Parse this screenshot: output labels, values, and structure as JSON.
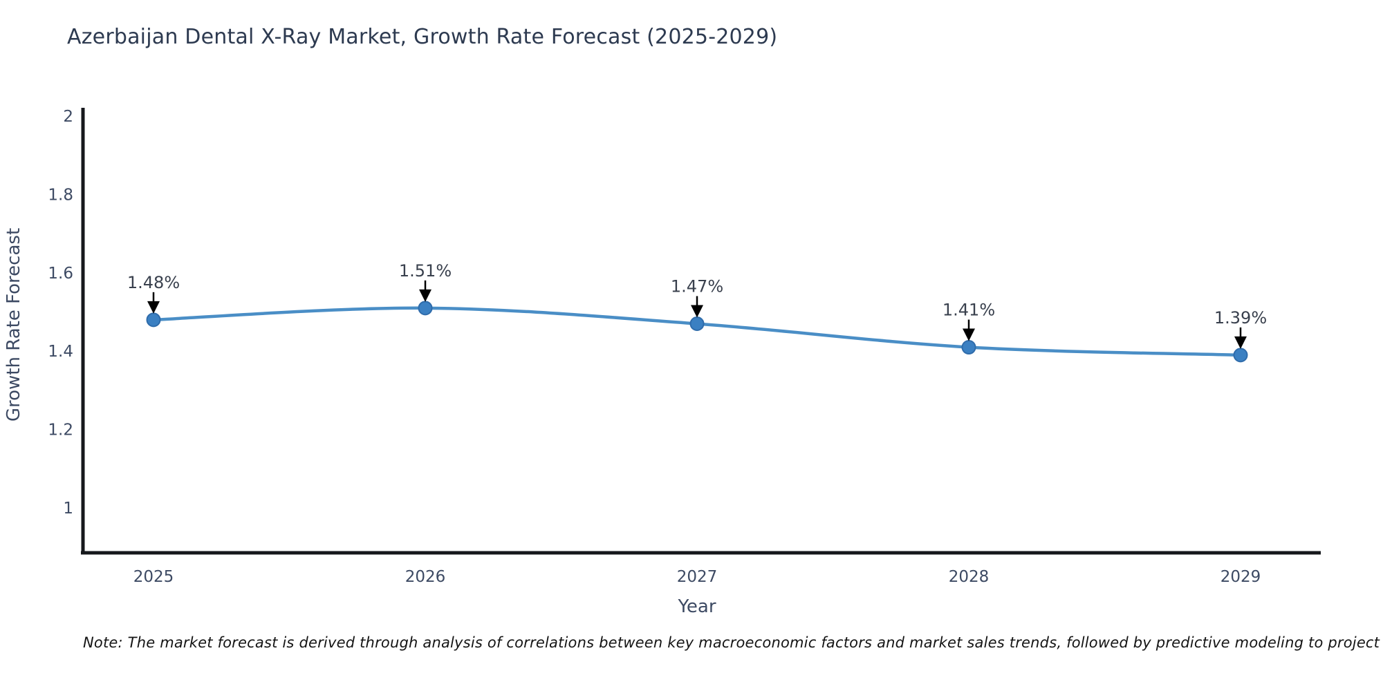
{
  "page": {
    "note": "Note: The market forecast is derived through analysis of correlations between key macroeconomic factors and market sales trends, followed by predictive modeling to project future sales"
  },
  "chart_data": {
    "type": "line",
    "title": "Azerbaijan Dental X-Ray Market, Growth Rate Forecast (2025-2029)",
    "xlabel": "Year",
    "ylabel": "Growth Rate Forecast",
    "x": [
      2025,
      2026,
      2027,
      2028,
      2029
    ],
    "series": [
      {
        "name": "Growth Rate Forecast",
        "values": [
          1.48,
          1.51,
          1.47,
          1.41,
          1.39
        ],
        "point_labels": [
          "1.48%",
          "1.51%",
          "1.47%",
          "1.41%",
          "1.39%"
        ]
      }
    ],
    "x_tick_labels": [
      "2025",
      "2026",
      "2027",
      "2028",
      "2029"
    ],
    "y_ticks": [
      2,
      1.8,
      1.6,
      1.4,
      1.2,
      1
    ],
    "y_tick_labels": [
      "2",
      "1.8",
      "1.6",
      "1.4",
      "1.2",
      "1"
    ],
    "ylim": [
      0.885,
      2.02
    ],
    "grid": false,
    "legend_position": "none",
    "annotation_style": "value labels with black down-arrows above each marker",
    "colors": {
      "line": "#4a8ec6",
      "marker_fill": "#3b80c2",
      "marker_edge": "#2f6cab",
      "axis_spine": "#16181c",
      "tick_text": "#3d4a63",
      "axis_title_text": "#3d4a63",
      "chart_title_text": "#2d3a50",
      "annotation_text": "#39404d",
      "arrow": "#000000",
      "background": "#ffffff"
    }
  }
}
